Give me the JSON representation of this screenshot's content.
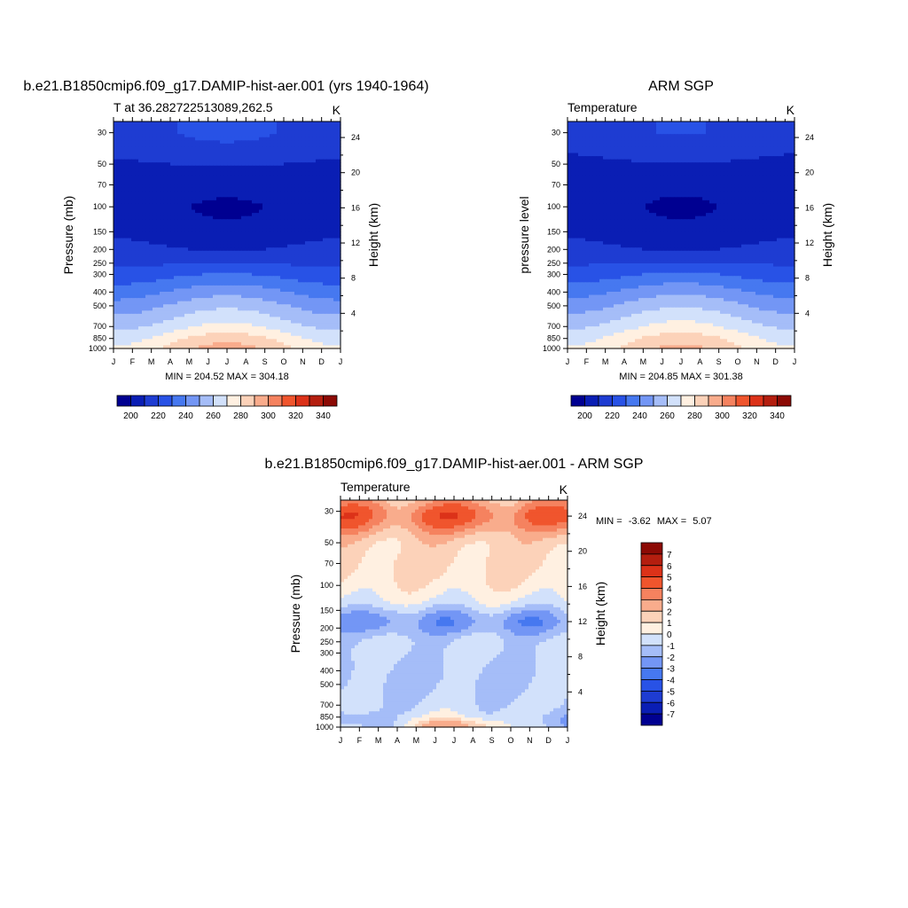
{
  "colors": {
    "temp_scale": [
      "#000091",
      "#0a1eb4",
      "#1e3cd2",
      "#2852e6",
      "#4678f0",
      "#7396f5",
      "#a5bdf8",
      "#d2e1fb",
      "#fff0e1",
      "#fcd2b9",
      "#f9ac8c",
      "#f5825f",
      "#f0552d",
      "#dc3219",
      "#b41e0f",
      "#8c0a05"
    ],
    "diff_scale": [
      "#000091",
      "#0a1eb4",
      "#1e3cd2",
      "#2852e6",
      "#4678f0",
      "#7396f5",
      "#a5bdf8",
      "#d2e1fb",
      "#fff0e1",
      "#fcd2b9",
      "#f9ac8c",
      "#f5825f",
      "#f0552d",
      "#dc3219",
      "#b41e0f",
      "#8c0a05"
    ]
  },
  "chart_data": [
    {
      "type": "heatmap",
      "title": "b.e21.B1850cmip6.f09_g17.DAMIP-hist-aer.001 (yrs 1940-1964)",
      "subtitle_left": "T at 36.282722513089,262.5",
      "subtitle_right": "K",
      "ylabel": "Pressure (mb)",
      "ylabel_right": "Height (km)",
      "stats": "MIN = 204.52 MAX = 304.18",
      "x": [
        "J",
        "F",
        "M",
        "A",
        "M",
        "J",
        "J",
        "A",
        "S",
        "O",
        "N",
        "D",
        "J"
      ],
      "y_ticks": [
        "30",
        "50",
        "70",
        "100",
        "150",
        "200",
        "250",
        "300",
        "400",
        "500",
        "700",
        "850",
        "1000"
      ],
      "height_ticks": [
        "24",
        "20",
        "16",
        "12",
        "8",
        "4"
      ],
      "ylim": [
        1000,
        30
      ],
      "colorbar_labels": [
        "200",
        "220",
        "240",
        "260",
        "280",
        "300",
        "320",
        "340"
      ],
      "profile": [
        [
          30,
          224
        ],
        [
          50,
          215
        ],
        [
          70,
          210
        ],
        [
          100,
          207
        ],
        [
          150,
          210
        ],
        [
          200,
          216
        ],
        [
          250,
          224
        ],
        [
          300,
          232
        ],
        [
          400,
          246
        ],
        [
          500,
          256
        ],
        [
          700,
          270
        ],
        [
          850,
          281
        ],
        [
          1000,
          288
        ]
      ],
      "seasonal_amplitude": [
        [
          30,
          5
        ],
        [
          70,
          -2
        ],
        [
          100,
          -4
        ],
        [
          150,
          -3
        ],
        [
          200,
          -2
        ],
        [
          250,
          1
        ],
        [
          300,
          4
        ],
        [
          400,
          6
        ],
        [
          500,
          7
        ],
        [
          700,
          8
        ],
        [
          850,
          10
        ],
        [
          1000,
          12
        ]
      ]
    },
    {
      "type": "heatmap",
      "title": "ARM SGP",
      "subtitle_left": "Temperature",
      "subtitle_right": "K",
      "ylabel": "pressure level",
      "ylabel_right": "Height (km)",
      "stats": "MIN = 204.85 MAX = 301.38",
      "x": [
        "J",
        "F",
        "M",
        "A",
        "M",
        "J",
        "J",
        "A",
        "S",
        "O",
        "N",
        "D",
        "J"
      ],
      "y_ticks": [
        "30",
        "50",
        "70",
        "100",
        "150",
        "200",
        "250",
        "300",
        "400",
        "500",
        "700",
        "850",
        "1000"
      ],
      "height_ticks": [
        "24",
        "20",
        "16",
        "12",
        "8",
        "4"
      ],
      "ylim": [
        1000,
        30
      ],
      "colorbar_labels": [
        "200",
        "220",
        "240",
        "260",
        "280",
        "300",
        "320",
        "340"
      ],
      "profile": [
        [
          30,
          222
        ],
        [
          50,
          214
        ],
        [
          70,
          209
        ],
        [
          100,
          207
        ],
        [
          150,
          210
        ],
        [
          200,
          216
        ],
        [
          250,
          225
        ],
        [
          300,
          233
        ],
        [
          400,
          247
        ],
        [
          500,
          257
        ],
        [
          700,
          271
        ],
        [
          850,
          281
        ],
        [
          1000,
          287
        ]
      ],
      "seasonal_amplitude": [
        [
          30,
          4
        ],
        [
          70,
          -2
        ],
        [
          100,
          -4
        ],
        [
          150,
          -3
        ],
        [
          200,
          -2
        ],
        [
          250,
          1
        ],
        [
          300,
          4
        ],
        [
          400,
          6
        ],
        [
          500,
          7
        ],
        [
          700,
          8
        ],
        [
          850,
          10
        ],
        [
          1000,
          11
        ]
      ]
    },
    {
      "type": "heatmap",
      "title": "b.e21.B1850cmip6.f09_g17.DAMIP-hist-aer.001 - ARM SGP",
      "subtitle_left": "Temperature",
      "subtitle_right": "K",
      "ylabel": "Pressure (mb)",
      "ylabel_right": "Height (km)",
      "stats_min_label": "MIN =",
      "stats_min": "-3.62",
      "stats_max_label": "MAX =",
      "stats_max": "5.07",
      "x": [
        "J",
        "F",
        "M",
        "A",
        "M",
        "J",
        "J",
        "A",
        "S",
        "O",
        "N",
        "D",
        "J"
      ],
      "y_ticks": [
        "30",
        "50",
        "70",
        "100",
        "150",
        "200",
        "250",
        "300",
        "400",
        "500",
        "700",
        "850",
        "1000"
      ],
      "height_ticks": [
        "24",
        "20",
        "16",
        "12",
        "8",
        "4"
      ],
      "ylim": [
        1000,
        30
      ],
      "colorbar_labels": [
        "7",
        "6",
        "5",
        "4",
        "3",
        "2",
        "1",
        "0",
        "-1",
        "-2",
        "-3",
        "-4",
        "-5",
        "-6",
        "-7"
      ]
    }
  ]
}
